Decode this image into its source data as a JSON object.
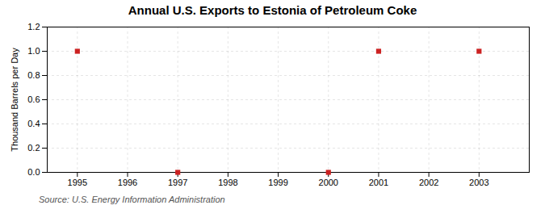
{
  "chart_data": {
    "type": "scatter",
    "title": "Annual U.S. Exports to Estonia of Petroleum Coke",
    "ylabel": "Thousand Barrels per Day",
    "source": "Source: U.S. Energy Information Administration",
    "x": [
      1995,
      1997,
      2000,
      2001,
      2003
    ],
    "values": [
      1.0,
      0.0,
      0.0,
      1.0,
      1.0
    ],
    "color": "#cc2222",
    "marker": "square",
    "xlim": [
      1994.4,
      2004.0
    ],
    "xticks": [
      1995,
      1996,
      1997,
      1998,
      1999,
      2000,
      2001,
      2002,
      2003
    ],
    "ylim": [
      0.0,
      1.2
    ],
    "yticks": [
      {
        "value": 0.0,
        "label": "0.0"
      },
      {
        "value": 0.2,
        "label": "0.2"
      },
      {
        "value": 0.4,
        "label": "0.4"
      },
      {
        "value": 0.6,
        "label": "0.6"
      },
      {
        "value": 0.8,
        "label": "0.8"
      },
      {
        "value": 1.0,
        "label": "1.0"
      },
      {
        "value": 1.2,
        "label": "1.2"
      }
    ],
    "grid": true
  }
}
